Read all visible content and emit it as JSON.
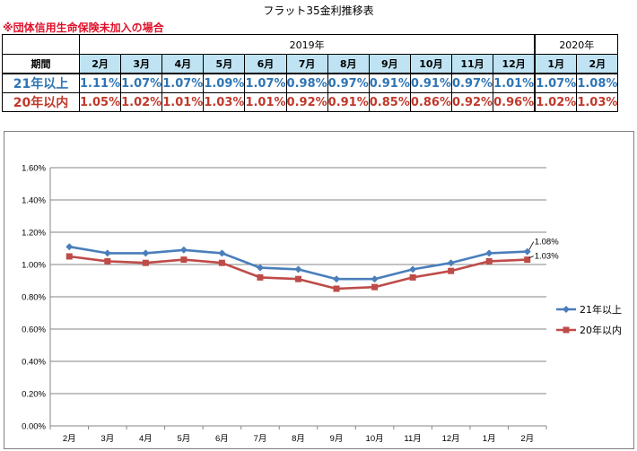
{
  "title": "フラット35金利推移表",
  "note": "※団体信用生命保険未加入の場合",
  "table": {
    "period_label": "期間",
    "year_2019": "2019年",
    "year_2020": "2020年",
    "months": [
      "2月",
      "3月",
      "4月",
      "5月",
      "6月",
      "7月",
      "8月",
      "9月",
      "10月",
      "11月",
      "12月",
      "1月",
      "2月"
    ],
    "rows": [
      {
        "label": "21年以上",
        "values": [
          "1.11%",
          "1.07%",
          "1.07%",
          "1.09%",
          "1.07%",
          "0.98%",
          "0.97%",
          "0.91%",
          "0.91%",
          "0.97%",
          "1.01%",
          "1.07%",
          "1.08%"
        ]
      },
      {
        "label": "20年以内",
        "values": [
          "1.05%",
          "1.02%",
          "1.01%",
          "1.03%",
          "1.01%",
          "0.92%",
          "0.91%",
          "0.85%",
          "0.86%",
          "0.92%",
          "0.96%",
          "1.02%",
          "1.03%"
        ]
      }
    ]
  },
  "colors": {
    "series1": "#4a7ebb",
    "series2": "#be4b48"
  },
  "chart_data": {
    "type": "line",
    "categories": [
      "2月",
      "3月",
      "4月",
      "5月",
      "6月",
      "7月",
      "8月",
      "9月",
      "10月",
      "11月",
      "12月",
      "1月",
      "2月"
    ],
    "y_ticks": [
      "0.00%",
      "0.20%",
      "0.40%",
      "0.60%",
      "0.80%",
      "1.00%",
      "1.20%",
      "1.40%",
      "1.60%"
    ],
    "ylim": [
      0,
      1.6
    ],
    "grid": true,
    "legend_position": "right",
    "series": [
      {
        "name": "21年以上",
        "values": [
          1.11,
          1.07,
          1.07,
          1.09,
          1.07,
          0.98,
          0.97,
          0.91,
          0.91,
          0.97,
          1.01,
          1.07,
          1.08
        ],
        "end_label": "1.08%"
      },
      {
        "name": "20年以内",
        "values": [
          1.05,
          1.02,
          1.01,
          1.03,
          1.01,
          0.92,
          0.91,
          0.85,
          0.86,
          0.92,
          0.96,
          1.02,
          1.03
        ],
        "end_label": "1.03%"
      }
    ]
  }
}
